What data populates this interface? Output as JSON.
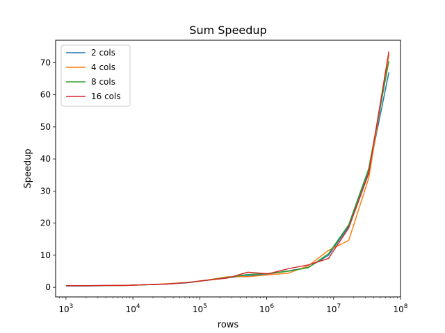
{
  "chart_data": {
    "type": "line",
    "title": "Sum Speedup",
    "xlabel": "rows",
    "ylabel": "Speedup",
    "xscale": "log",
    "xlim": [
      700,
      100000000
    ],
    "ylim": [
      -3,
      77
    ],
    "x_ticks": [
      {
        "value": 1000,
        "base": "10",
        "exp": "3"
      },
      {
        "value": 10000,
        "base": "10",
        "exp": "4"
      },
      {
        "value": 100000,
        "base": "10",
        "exp": "5"
      },
      {
        "value": 1000000,
        "base": "10",
        "exp": "6"
      },
      {
        "value": 10000000,
        "base": "10",
        "exp": "7"
      },
      {
        "value": 100000000,
        "base": "10",
        "exp": "8"
      }
    ],
    "y_ticks": [
      {
        "value": 0,
        "label": "0"
      },
      {
        "value": 10,
        "label": "10"
      },
      {
        "value": 20,
        "label": "20"
      },
      {
        "value": 30,
        "label": "30"
      },
      {
        "value": 40,
        "label": "40"
      },
      {
        "value": 50,
        "label": "50"
      },
      {
        "value": 60,
        "label": "60"
      },
      {
        "value": 70,
        "label": "70"
      }
    ],
    "grid": false,
    "legend_position": "top-left",
    "x": [
      1000,
      2000,
      4000,
      8000,
      16000,
      32000,
      65000,
      131000,
      262000,
      524000,
      1050000,
      2100000,
      4200000,
      8400000,
      16800000,
      33500000,
      67000000
    ],
    "series": [
      {
        "name": "2 cols",
        "color": "#1f77b4",
        "values": [
          0.4,
          0.4,
          0.5,
          0.6,
          0.8,
          1.0,
          1.4,
          2.2,
          3.0,
          3.6,
          4.2,
          5.1,
          6.2,
          10.0,
          19.0,
          36.0,
          67.0
        ]
      },
      {
        "name": "4 cols",
        "color": "#ff7f0e",
        "values": [
          0.5,
          0.5,
          0.5,
          0.6,
          0.8,
          1.1,
          1.5,
          2.3,
          3.3,
          3.3,
          3.9,
          4.4,
          6.7,
          11.5,
          14.6,
          34.0,
          72.5
        ]
      },
      {
        "name": "8 cols",
        "color": "#2ca02c",
        "values": [
          0.5,
          0.5,
          0.5,
          0.6,
          0.8,
          1.0,
          1.5,
          2.2,
          3.1,
          4.0,
          4.3,
          5.0,
          6.1,
          10.5,
          19.5,
          37.0,
          70.5
        ]
      },
      {
        "name": "16 cols",
        "color": "#d62728",
        "values": [
          0.5,
          0.5,
          0.6,
          0.6,
          0.8,
          1.0,
          1.5,
          2.2,
          2.9,
          4.7,
          4.2,
          5.8,
          7.0,
          9.0,
          18.5,
          35.5,
          73.5
        ]
      }
    ]
  }
}
